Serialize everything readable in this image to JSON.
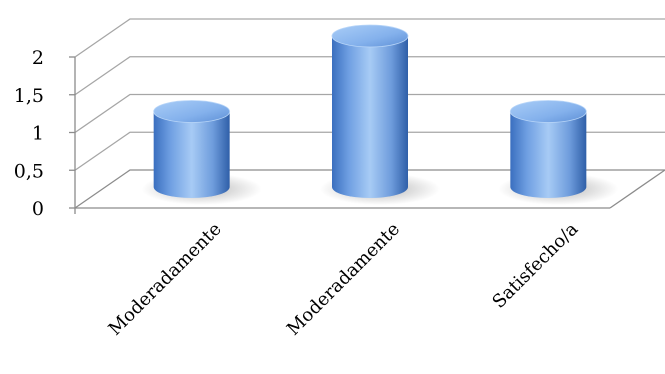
{
  "chart_data": {
    "type": "bar",
    "style": "3d-cylinder",
    "categories": [
      "Moderadamente",
      "Moderadamente",
      "Satisfecho/a"
    ],
    "values": [
      1,
      2,
      1
    ],
    "ylim": [
      0,
      2
    ],
    "yticks": [
      "0",
      "0,5",
      "1",
      "1,5",
      "2"
    ],
    "title": "",
    "xlabel": "",
    "ylabel": "",
    "grid": true,
    "legend": "none",
    "bar_color": "#6f9fdf"
  }
}
